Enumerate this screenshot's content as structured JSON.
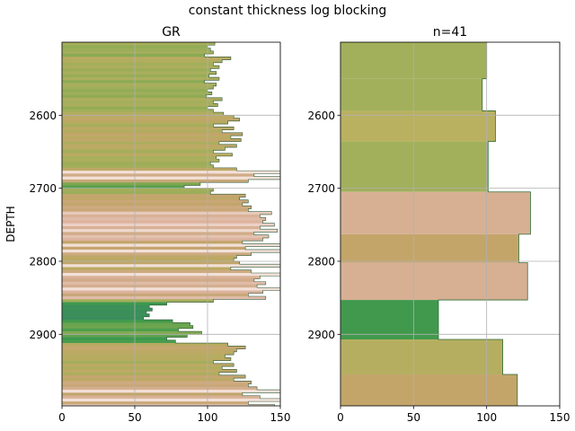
{
  "figure_title": "constant thickness log blocking",
  "chart_data": [
    {
      "type": "bar",
      "orientation": "horizontal",
      "title": "GR",
      "xlabel": "",
      "ylabel": "DEPTH",
      "xlim": [
        0,
        150
      ],
      "ylim": [
        2998,
        2500
      ],
      "grid": true,
      "xticks": [
        0,
        50,
        100,
        150
      ],
      "yticks": [
        2600,
        2700,
        2800,
        2900
      ],
      "color_scale": [
        {
          "value": 55,
          "color": "#3a8c5e"
        },
        {
          "value": 75,
          "color": "#3e9a4c"
        },
        {
          "value": 95,
          "color": "#7ea850"
        },
        {
          "value": 105,
          "color": "#a7af5c"
        },
        {
          "value": 115,
          "color": "#b9ab60"
        },
        {
          "value": 125,
          "color": "#c3a46c"
        },
        {
          "value": 138,
          "color": "#dcb39e"
        },
        {
          "value": 150,
          "color": "#f2e0d8"
        }
      ],
      "depth": [
        2502,
        2506,
        2510,
        2514,
        2518,
        2522,
        2526,
        2530,
        2534,
        2538,
        2542,
        2546,
        2550,
        2554,
        2558,
        2562,
        2566,
        2570,
        2574,
        2578,
        2582,
        2586,
        2590,
        2594,
        2598,
        2602,
        2606,
        2610,
        2614,
        2618,
        2622,
        2626,
        2630,
        2634,
        2638,
        2642,
        2646,
        2650,
        2654,
        2658,
        2662,
        2666,
        2670,
        2674,
        2678,
        2682,
        2686,
        2690,
        2694,
        2698,
        2702,
        2706,
        2710,
        2714,
        2718,
        2722,
        2726,
        2730,
        2734,
        2738,
        2742,
        2746,
        2750,
        2754,
        2758,
        2762,
        2766,
        2770,
        2774,
        2778,
        2782,
        2786,
        2790,
        2794,
        2798,
        2802,
        2806,
        2810,
        2814,
        2818,
        2822,
        2826,
        2830,
        2834,
        2838,
        2842,
        2846,
        2850,
        2854,
        2858,
        2862,
        2866,
        2870,
        2874,
        2878,
        2882,
        2886,
        2890,
        2894,
        2898,
        2902,
        2906,
        2910,
        2914,
        2918,
        2922,
        2926,
        2930,
        2934,
        2938,
        2942,
        2946,
        2950,
        2954,
        2958,
        2962,
        2966,
        2970,
        2974,
        2978,
        2982,
        2986,
        2990,
        2994,
        2998
      ],
      "values": [
        105,
        100,
        102,
        104,
        98,
        116,
        110,
        104,
        108,
        102,
        106,
        101,
        108,
        98,
        106,
        104,
        100,
        103,
        99,
        110,
        104,
        107,
        100,
        104,
        111,
        118,
        122,
        114,
        104,
        118,
        110,
        124,
        116,
        123,
        108,
        120,
        112,
        104,
        117,
        106,
        108,
        102,
        104,
        120,
        150,
        132,
        152,
        128,
        95,
        84,
        104,
        102,
        126,
        122,
        128,
        124,
        130,
        128,
        144,
        136,
        140,
        138,
        146,
        136,
        148,
        132,
        142,
        138,
        124,
        150,
        126,
        152,
        130,
        120,
        118,
        122,
        150,
        116,
        130,
        152,
        136,
        132,
        140,
        134,
        150,
        138,
        128,
        140,
        104,
        72,
        60,
        62,
        58,
        60,
        56,
        76,
        88,
        90,
        80,
        96,
        86,
        72,
        78,
        114,
        126,
        120,
        118,
        112,
        116,
        104,
        118,
        110,
        120,
        108,
        126,
        118,
        130,
        128,
        134,
        152,
        124,
        136,
        150,
        128,
        146
      ]
    },
    {
      "type": "bar",
      "orientation": "horizontal",
      "title": "n=41",
      "xlabel": "",
      "ylabel": "",
      "xlim": [
        0,
        150
      ],
      "ylim": [
        2998,
        2500
      ],
      "grid": true,
      "xticks": [
        0,
        50,
        100,
        150
      ],
      "yticks": [
        2600,
        2700,
        2800,
        2900
      ],
      "blocks": [
        {
          "top": 2500,
          "bottom": 2550,
          "value": 100,
          "color": "#a2b05c"
        },
        {
          "top": 2550,
          "bottom": 2594,
          "value": 97,
          "color": "#a2b05c"
        },
        {
          "top": 2594,
          "bottom": 2636,
          "value": 106,
          "color": "#b9b160"
        },
        {
          "top": 2636,
          "bottom": 2705,
          "value": 101,
          "color": "#a2b05c"
        },
        {
          "top": 2705,
          "bottom": 2763,
          "value": 130,
          "color": "#d7b094"
        },
        {
          "top": 2763,
          "bottom": 2802,
          "value": 122,
          "color": "#c3a56a"
        },
        {
          "top": 2802,
          "bottom": 2853,
          "value": 128,
          "color": "#d7b094"
        },
        {
          "top": 2853,
          "bottom": 2907,
          "value": 67,
          "color": "#40994c"
        },
        {
          "top": 2907,
          "bottom": 2955,
          "value": 111,
          "color": "#b5ae60"
        },
        {
          "top": 2955,
          "bottom": 2998,
          "value": 121,
          "color": "#c3a56a"
        }
      ]
    }
  ]
}
